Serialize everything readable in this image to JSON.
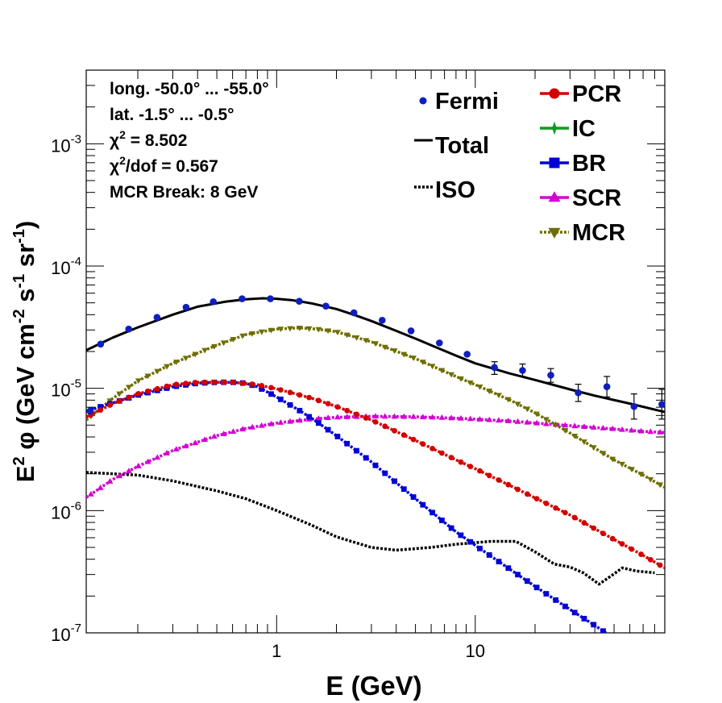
{
  "chart_data": {
    "type": "line",
    "xlabel": "E (GeV)",
    "ylabel_parts": [
      "E",
      "2",
      " φ (GeV cm",
      "-2",
      " s",
      "-1",
      " sr",
      "-1",
      ")"
    ],
    "xscale": "log",
    "yscale": "log",
    "xlim": [
      0.11,
      90
    ],
    "ylim": [
      1e-07,
      0.004
    ],
    "x_ticks": [
      {
        "value": 1,
        "label": "1"
      },
      {
        "value": 10,
        "label": "10"
      }
    ],
    "y_ticks": [
      {
        "value": 1e-07,
        "base": "10",
        "exp": "-7"
      },
      {
        "value": 1e-06,
        "base": "10",
        "exp": "-6"
      },
      {
        "value": 1e-05,
        "base": "10",
        "exp": "-5"
      },
      {
        "value": 0.0001,
        "base": "10",
        "exp": "-4"
      },
      {
        "value": 0.001,
        "base": "10",
        "exp": "-3"
      }
    ],
    "info_lines": [
      [
        {
          "t": "long. -50.0° ... -55.0°"
        }
      ],
      [
        {
          "t": "lat. -1.5° ... -0.5°"
        }
      ],
      [
        {
          "t": "χ"
        },
        {
          "t": "2",
          "sup": true
        },
        {
          "t": " = 8.502"
        }
      ],
      [
        {
          "t": "χ"
        },
        {
          "t": "2",
          "sup": true
        },
        {
          "t": "/dof = 0.567"
        }
      ],
      [
        {
          "t": "MCR Break:  8 GeV"
        }
      ]
    ],
    "legend_left": [
      {
        "label": "Fermi",
        "kind": "points",
        "color": "#0f1fbf"
      },
      {
        "label": "Total",
        "kind": "solid",
        "color": "#000000"
      },
      {
        "label": "ISO",
        "kind": "dotted",
        "color": "#000000"
      }
    ],
    "legend_right": [
      {
        "label": "PCR",
        "marker": "circle",
        "color": "#d40000"
      },
      {
        "label": "IC",
        "marker": "star",
        "color": "#0e9a1c"
      },
      {
        "label": "BR",
        "marker": "square",
        "color": "#0000d4"
      },
      {
        "label": "SCR",
        "marker": "triangle-up",
        "color": "#d400d4"
      },
      {
        "label": "MCR",
        "marker": "triangle-down",
        "color": "#6e6e00"
      }
    ],
    "fermi": {
      "name": "Fermi",
      "color": "#0f1fbf",
      "points": [
        {
          "x": 0.115,
          "y": 6.5e-06
        },
        {
          "x": 0.13,
          "y": 2.3e-05
        },
        {
          "x": 0.18,
          "y": 3.05e-05
        },
        {
          "x": 0.25,
          "y": 3.8e-05
        },
        {
          "x": 0.35,
          "y": 4.6e-05
        },
        {
          "x": 0.48,
          "y": 5.1e-05
        },
        {
          "x": 0.67,
          "y": 5.4e-05
        },
        {
          "x": 0.93,
          "y": 5.4e-05
        },
        {
          "x": 1.3,
          "y": 5.15e-05
        },
        {
          "x": 1.77,
          "y": 4.7e-05
        },
        {
          "x": 2.45,
          "y": 4.15e-05
        },
        {
          "x": 3.4,
          "y": 3.6e-05
        },
        {
          "x": 4.75,
          "y": 2.95e-05
        },
        {
          "x": 6.6,
          "y": 2.35e-05
        },
        {
          "x": 9.1,
          "y": 1.9e-05
        },
        {
          "x": 12.5,
          "y": 1.48e-05
        },
        {
          "x": 17.3,
          "y": 1.4e-05
        },
        {
          "x": 24,
          "y": 1.28e-05
        },
        {
          "x": 33,
          "y": 9.2e-06
        },
        {
          "x": 46,
          "y": 1.03e-05
        },
        {
          "x": 63,
          "y": 7.1e-06
        },
        {
          "x": 87,
          "y": 7.4e-06
        }
      ],
      "errors": [
        {
          "x": 12.5,
          "lo": 1.3e-05,
          "hi": 1.65e-05
        },
        {
          "x": 17.3,
          "lo": 1.25e-05,
          "hi": 1.58e-05
        },
        {
          "x": 24,
          "lo": 1.12e-05,
          "hi": 1.45e-05
        },
        {
          "x": 33,
          "lo": 7.8e-06,
          "hi": 1.08e-05
        },
        {
          "x": 46,
          "lo": 8.5e-06,
          "hi": 1.25e-05
        },
        {
          "x": 63,
          "lo": 5.6e-06,
          "hi": 9e-06
        },
        {
          "x": 87,
          "lo": 5.6e-06,
          "hi": 9.8e-06
        }
      ]
    },
    "series": [
      {
        "name": "Total",
        "color": "#000000",
        "style": "solid",
        "marker": "none",
        "x": [
          0.11,
          0.15,
          0.2,
          0.3,
          0.4,
          0.55,
          0.7,
          0.85,
          1.0,
          1.2,
          1.5,
          2.0,
          2.5,
          3.0,
          4.0,
          5.0,
          6.0,
          8.0,
          10,
          15,
          20,
          30,
          40,
          60,
          90
        ],
        "y": [
          2.05e-05,
          2.6e-05,
          3.15e-05,
          4e-05,
          4.65e-05,
          5.1e-05,
          5.35e-05,
          5.45e-05,
          5.4e-05,
          5.25e-05,
          4.95e-05,
          4.45e-05,
          3.95e-05,
          3.55e-05,
          2.95e-05,
          2.55e-05,
          2.25e-05,
          1.85e-05,
          1.6e-05,
          1.32e-05,
          1.17e-05,
          9.8e-06,
          8.7e-06,
          7.5e-06,
          6.4e-06
        ]
      },
      {
        "name": "ISO",
        "color": "#000000",
        "style": "dotted",
        "marker": "none",
        "x": [
          0.11,
          0.15,
          0.2,
          0.3,
          0.5,
          0.7,
          1.0,
          1.5,
          2.0,
          3.0,
          4.0,
          6.0,
          8.0,
          12,
          16,
          20,
          25,
          30,
          35,
          42,
          48,
          55,
          65,
          80
        ],
        "y": [
          2.05e-06,
          2e-06,
          1.95e-06,
          1.75e-06,
          1.45e-06,
          1.25e-06,
          1e-06,
          7.6e-07,
          6.1e-07,
          5e-07,
          4.75e-07,
          5e-07,
          5.3e-07,
          5.6e-07,
          5.6e-07,
          4.6e-07,
          3.65e-07,
          3.45e-07,
          3.1e-07,
          2.5e-07,
          2.9e-07,
          3.4e-07,
          3.2e-07,
          3.1e-07
        ]
      },
      {
        "name": "PCR",
        "color": "#d40000",
        "style": "dotted",
        "marker": "circle",
        "x": [
          0.11,
          0.15,
          0.2,
          0.3,
          0.4,
          0.6,
          0.8,
          1.0,
          1.5,
          2.0,
          3.0,
          5.0,
          8.0,
          10,
          15,
          20,
          30,
          50,
          70,
          90
        ],
        "y": [
          5.8e-06,
          7.5e-06,
          9e-06,
          1.07e-05,
          1.12e-05,
          1.12e-05,
          1.07e-05,
          9.9e-06,
          8.3e-06,
          7.1e-06,
          5.5e-06,
          3.75e-06,
          2.6e-06,
          2.2e-06,
          1.6e-06,
          1.27e-06,
          9.2e-07,
          5.8e-07,
          4.3e-07,
          3.4e-07
        ]
      },
      {
        "name": "MCR",
        "color": "#6e6e00",
        "style": "dotted",
        "marker": "triangle-down",
        "x": [
          0.11,
          0.15,
          0.2,
          0.3,
          0.5,
          0.7,
          1.0,
          1.3,
          1.6,
          2.0,
          3.0,
          5.0,
          8.0,
          10,
          15,
          20,
          30,
          50,
          70,
          90
        ],
        "y": [
          5.5e-06,
          8.3e-06,
          1.15e-05,
          1.6e-05,
          2.25e-05,
          2.75e-05,
          3.05e-05,
          3.12e-05,
          3.05e-05,
          2.9e-05,
          2.4e-05,
          1.75e-05,
          1.25e-05,
          1.07e-05,
          8e-06,
          6.3e-06,
          4.3e-06,
          2.6e-06,
          1.95e-06,
          1.55e-06
        ]
      },
      {
        "name": "BR",
        "color": "#0000d4",
        "style": "dotted",
        "marker": "square",
        "x": [
          0.11,
          0.15,
          0.2,
          0.3,
          0.4,
          0.5,
          0.6,
          0.7,
          0.8,
          1.0,
          1.3,
          1.6,
          2.0,
          3.0,
          5.0,
          8.0,
          10,
          15,
          20,
          30,
          40,
          50
        ],
        "y": [
          6.5e-06,
          7.6e-06,
          8.8e-06,
          1.03e-05,
          1.1e-05,
          1.12e-05,
          1.12e-05,
          1.1e-05,
          1.03e-05,
          8.5e-06,
          6.6e-06,
          5.3e-06,
          4.1e-06,
          2.5e-06,
          1.25e-06,
          6.7e-07,
          5.2e-07,
          3.3e-07,
          2.4e-07,
          1.55e-07,
          1.15e-07,
          9e-08
        ]
      },
      {
        "name": "SCR",
        "color": "#d400d4",
        "style": "dotted",
        "marker": "triangle-up",
        "x": [
          0.11,
          0.15,
          0.2,
          0.3,
          0.5,
          0.7,
          1.0,
          1.5,
          2.0,
          3.0,
          5.0,
          8.0,
          10,
          15,
          20,
          30,
          50,
          70,
          90
        ],
        "y": [
          1.28e-06,
          1.8e-06,
          2.3e-06,
          3.1e-06,
          4.1e-06,
          4.7e-06,
          5.2e-06,
          5.6e-06,
          5.8e-06,
          5.9e-06,
          5.85e-06,
          5.7e-06,
          5.6e-06,
          5.4e-06,
          5.2e-06,
          4.95e-06,
          4.65e-06,
          4.45e-06,
          4.35e-06
        ]
      }
    ]
  }
}
